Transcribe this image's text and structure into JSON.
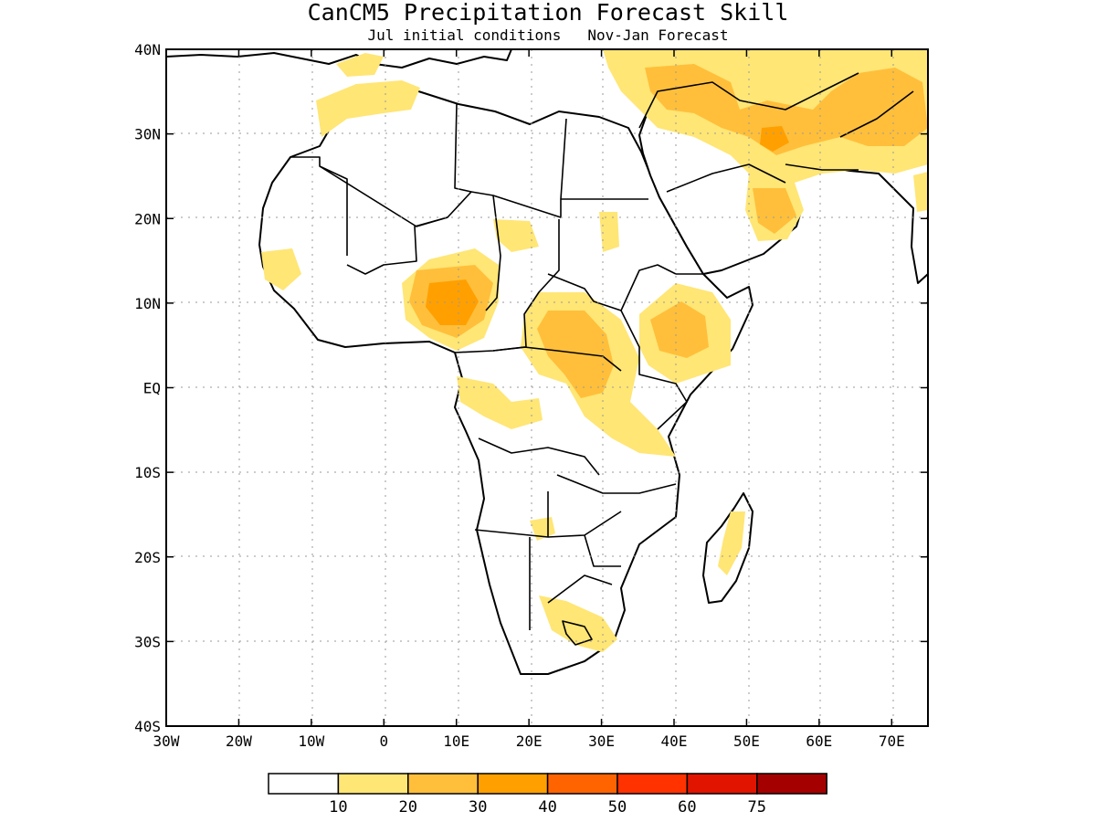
{
  "title": "CanCM5 Precipitation Forecast Skill",
  "subtitle": "Jul initial conditions   Nov-Jan Forecast",
  "axes": {
    "lon_labels": [
      "30W",
      "20W",
      "10W",
      "0",
      "10E",
      "20E",
      "30E",
      "40E",
      "50E",
      "60E",
      "70E"
    ],
    "lat_labels": [
      "40N",
      "30N",
      "20N",
      "10N",
      "EQ",
      "10S",
      "20S",
      "30S",
      "40S"
    ]
  },
  "legend": {
    "colors": [
      "#ffffff",
      "#ffe675",
      "#ffbf3b",
      "#ff9f00",
      "#ff6400",
      "#ff3200",
      "#e11400",
      "#a50000"
    ],
    "labels": [
      "10",
      "20",
      "30",
      "40",
      "50",
      "60",
      "75"
    ]
  }
}
